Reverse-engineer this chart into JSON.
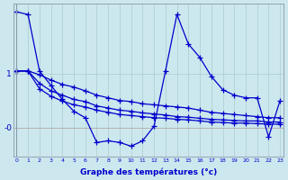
{
  "xlabel": "Graphe des températures (°c)",
  "bg_color": "#cce8ee",
  "line_color": "#0000cc",
  "grid_color": "#aacccc",
  "y_ticks": [
    0,
    1
  ],
  "y_tick_labels": [
    "-0",
    "1"
  ],
  "x_ticks": [
    0,
    1,
    2,
    3,
    4,
    5,
    6,
    7,
    8,
    9,
    10,
    11,
    12,
    13,
    14,
    15,
    16,
    17,
    18,
    19,
    20,
    21,
    22,
    23
  ],
  "ylim": [
    -0.55,
    2.3
  ],
  "xlim": [
    -0.3,
    23.3
  ],
  "line1": [
    2.15,
    2.1,
    1.05,
    0.78,
    0.52,
    0.3,
    0.18,
    -0.28,
    -0.25,
    -0.28,
    -0.35,
    -0.25,
    0.02,
    1.05,
    2.1,
    1.55,
    1.3,
    0.95,
    0.7,
    0.6,
    0.55,
    0.55,
    -0.18,
    0.5
  ],
  "line2": [
    1.05,
    1.05,
    0.98,
    0.88,
    0.8,
    0.75,
    0.68,
    0.6,
    0.55,
    0.5,
    0.48,
    0.44,
    0.42,
    0.4,
    0.38,
    0.36,
    0.32,
    0.28,
    0.26,
    0.24,
    0.22,
    0.2,
    0.18,
    0.18
  ],
  "line3": [
    1.05,
    1.05,
    0.82,
    0.68,
    0.6,
    0.52,
    0.48,
    0.4,
    0.36,
    0.32,
    0.3,
    0.27,
    0.25,
    0.23,
    0.2,
    0.19,
    0.17,
    0.15,
    0.14,
    0.13,
    0.12,
    0.12,
    0.1,
    0.1
  ],
  "line4": [
    1.05,
    1.05,
    0.72,
    0.58,
    0.49,
    0.42,
    0.38,
    0.32,
    0.28,
    0.24,
    0.22,
    0.2,
    0.18,
    0.17,
    0.15,
    0.14,
    0.12,
    0.1,
    0.09,
    0.08,
    0.08,
    0.07,
    0.06,
    0.06
  ]
}
